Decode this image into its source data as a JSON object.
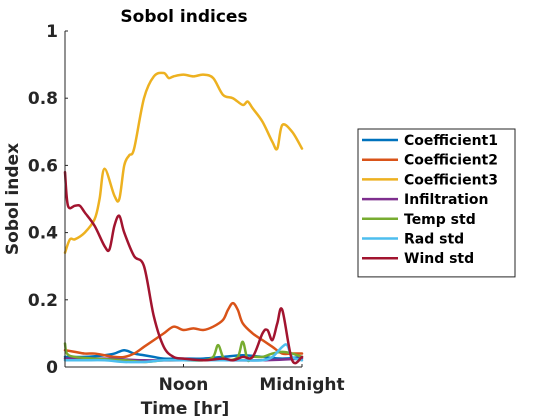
{
  "chart_data": {
    "type": "line",
    "title": "Sobol indices",
    "xlabel": "Time [hr]",
    "ylabel": "Sobol index",
    "xlim": [
      0,
      24
    ],
    "ylim": [
      0,
      1
    ],
    "x_ticks": [
      {
        "value": 12,
        "label": "Noon"
      },
      {
        "value": 24,
        "label": "Midnight"
      }
    ],
    "y_ticks": [
      {
        "value": 0,
        "label": "0"
      },
      {
        "value": 0.2,
        "label": "0.2"
      },
      {
        "value": 0.4,
        "label": "0.4"
      },
      {
        "value": 0.6,
        "label": "0.6"
      },
      {
        "value": 0.8,
        "label": "0.8"
      },
      {
        "value": 1,
        "label": "1"
      }
    ],
    "grid": false,
    "legend_position": "right",
    "series": [
      {
        "name": "Coefficient1",
        "color": "#0072BD",
        "x": [
          0,
          2,
          4,
          5,
          6,
          7,
          8,
          9,
          10,
          12,
          14,
          16,
          18,
          20,
          22,
          24
        ],
        "y": [
          0.03,
          0.03,
          0.035,
          0.04,
          0.05,
          0.04,
          0.035,
          0.03,
          0.025,
          0.025,
          0.025,
          0.03,
          0.035,
          0.03,
          0.025,
          0.03
        ]
      },
      {
        "name": "Coefficient2",
        "color": "#D95319",
        "x": [
          0,
          1,
          2,
          3,
          4,
          5,
          6,
          7,
          8,
          9,
          10,
          11,
          12,
          13,
          14,
          15,
          16,
          16.5,
          17,
          17.5,
          18,
          19,
          20,
          21,
          22,
          23,
          24
        ],
        "y": [
          0.05,
          0.045,
          0.04,
          0.04,
          0.035,
          0.03,
          0.03,
          0.04,
          0.06,
          0.08,
          0.1,
          0.12,
          0.11,
          0.115,
          0.11,
          0.12,
          0.14,
          0.17,
          0.19,
          0.17,
          0.13,
          0.1,
          0.08,
          0.06,
          0.04,
          0.04,
          0.04
        ]
      },
      {
        "name": "Coefficient3",
        "color": "#EDB120",
        "x": [
          0,
          0.5,
          1,
          2,
          3,
          3.5,
          4,
          5,
          5.5,
          6,
          6.5,
          7,
          8,
          9,
          10,
          10.5,
          11,
          12,
          13,
          14,
          15,
          16,
          17,
          18,
          18.5,
          19,
          20,
          21,
          21.5,
          22,
          23,
          24
        ],
        "y": [
          0.34,
          0.38,
          0.38,
          0.4,
          0.44,
          0.5,
          0.59,
          0.51,
          0.5,
          0.6,
          0.63,
          0.65,
          0.8,
          0.865,
          0.875,
          0.86,
          0.865,
          0.87,
          0.865,
          0.87,
          0.86,
          0.81,
          0.8,
          0.78,
          0.79,
          0.77,
          0.73,
          0.67,
          0.65,
          0.72,
          0.7,
          0.65
        ]
      },
      {
        "name": "Infiltration",
        "color": "#7E2F8E",
        "x": [
          0,
          4,
          8,
          12,
          16,
          20,
          24
        ],
        "y": [
          0.025,
          0.025,
          0.02,
          0.02,
          0.02,
          0.02,
          0.025
        ]
      },
      {
        "name": "Temp std",
        "color": "#77AC30",
        "x": [
          0,
          0.2,
          1,
          3,
          6,
          8,
          10,
          12,
          14,
          15,
          15.5,
          16,
          16.5,
          17.5,
          18,
          18.5,
          19,
          20,
          21,
          22,
          23,
          24
        ],
        "y": [
          0.07,
          0.04,
          0.03,
          0.025,
          0.02,
          0.015,
          0.02,
          0.02,
          0.02,
          0.03,
          0.065,
          0.03,
          0.02,
          0.03,
          0.075,
          0.02,
          0.03,
          0.03,
          0.04,
          0.045,
          0.04,
          0.03
        ]
      },
      {
        "name": "Rad std",
        "color": "#4DBEEE",
        "x": [
          0,
          2,
          4,
          6,
          8,
          10,
          12,
          14,
          16,
          18,
          20,
          21,
          22,
          22.5,
          23,
          24
        ],
        "y": [
          0.02,
          0.02,
          0.02,
          0.015,
          0.015,
          0.02,
          0.02,
          0.02,
          0.02,
          0.02,
          0.02,
          0.03,
          0.06,
          0.065,
          0.03,
          0.02
        ]
      },
      {
        "name": "Wind std",
        "color": "#A2142F",
        "x": [
          0,
          0.3,
          1,
          1.5,
          2,
          3,
          4,
          4.5,
          5,
          5.5,
          6,
          7,
          8,
          9,
          10,
          11,
          12,
          14,
          16,
          17,
          18,
          19,
          20,
          20.5,
          21,
          21.5,
          22,
          23,
          24
        ],
        "y": [
          0.58,
          0.48,
          0.48,
          0.48,
          0.46,
          0.42,
          0.36,
          0.35,
          0.42,
          0.45,
          0.4,
          0.33,
          0.3,
          0.15,
          0.06,
          0.03,
          0.025,
          0.02,
          0.025,
          0.02,
          0.03,
          0.03,
          0.1,
          0.11,
          0.08,
          0.13,
          0.17,
          0.02,
          0.03
        ]
      }
    ]
  }
}
